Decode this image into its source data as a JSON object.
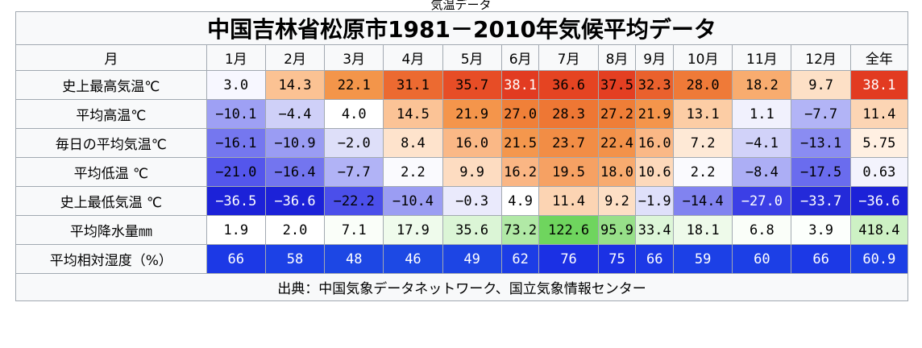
{
  "top_fragment": "気温データ",
  "title": "中国吉林省松原市1981－2010年気候平均データ",
  "header": {
    "label": "月",
    "months": [
      "1月",
      "2月",
      "3月",
      "4月",
      "5月",
      "6月",
      "7月",
      "8月",
      "9月",
      "10月",
      "11月",
      "12月",
      "全年"
    ]
  },
  "rows": [
    {
      "label": "史上最高気温℃",
      "cells": [
        {
          "v": "3.0",
          "bg": "#f7f7ff",
          "fg": "#000000"
        },
        {
          "v": "14.3",
          "bg": "#fbc293",
          "fg": "#000000"
        },
        {
          "v": "22.1",
          "bg": "#f3954a",
          "fg": "#000000"
        },
        {
          "v": "31.1",
          "bg": "#ec6a31",
          "fg": "#000000"
        },
        {
          "v": "35.7",
          "bg": "#e74d26",
          "fg": "#000000"
        },
        {
          "v": "38.1",
          "bg": "#e23b21",
          "fg": "#ffffff"
        },
        {
          "v": "36.6",
          "bg": "#e54422",
          "fg": "#000000"
        },
        {
          "v": "37.5",
          "bg": "#e43f22",
          "fg": "#000000"
        },
        {
          "v": "32.3",
          "bg": "#ea612d",
          "fg": "#000000"
        },
        {
          "v": "28.0",
          "bg": "#ef7a38",
          "fg": "#000000"
        },
        {
          "v": "18.2",
          "bg": "#f8ac6f",
          "fg": "#000000"
        },
        {
          "v": "9.7",
          "bg": "#fde0c6",
          "fg": "#000000"
        },
        {
          "v": "38.1",
          "bg": "#e23b21",
          "fg": "#ffffff"
        }
      ]
    },
    {
      "label": "平均高温℃",
      "cells": [
        {
          "v": "−10.1",
          "bg": "#9ea0f4",
          "fg": "#000000"
        },
        {
          "v": "−4.4",
          "bg": "#cfd0f8",
          "fg": "#000000"
        },
        {
          "v": "4.0",
          "bg": "#ffffff",
          "fg": "#000000"
        },
        {
          "v": "14.5",
          "bg": "#fbc396",
          "fg": "#000000"
        },
        {
          "v": "21.9",
          "bg": "#f4954b",
          "fg": "#000000"
        },
        {
          "v": "27.0",
          "bg": "#f08038",
          "fg": "#000000"
        },
        {
          "v": "28.3",
          "bg": "#ee7734",
          "fg": "#000000"
        },
        {
          "v": "27.2",
          "bg": "#ef7e37",
          "fg": "#000000"
        },
        {
          "v": "21.9",
          "bg": "#f4954b",
          "fg": "#000000"
        },
        {
          "v": "13.1",
          "bg": "#fccda5",
          "fg": "#000000"
        },
        {
          "v": "1.1",
          "bg": "#f1f1fd",
          "fg": "#000000"
        },
        {
          "v": "−7.7",
          "bg": "#b2b4f6",
          "fg": "#000000"
        },
        {
          "v": "11.4",
          "bg": "#fcd5b4",
          "fg": "#000000"
        }
      ]
    },
    {
      "label": "毎日の平均気温℃",
      "cells": [
        {
          "v": "−16.1",
          "bg": "#7577ef",
          "fg": "#000000"
        },
        {
          "v": "−10.9",
          "bg": "#9a9cf3",
          "fg": "#000000"
        },
        {
          "v": "−2.0",
          "bg": "#dedff9",
          "fg": "#000000"
        },
        {
          "v": "8.4",
          "bg": "#fee3cc",
          "fg": "#000000"
        },
        {
          "v": "16.0",
          "bg": "#fab886",
          "fg": "#000000"
        },
        {
          "v": "21.5",
          "bg": "#f4974d",
          "fg": "#000000"
        },
        {
          "v": "23.7",
          "bg": "#f28d45",
          "fg": "#000000"
        },
        {
          "v": "22.4",
          "bg": "#f3924a",
          "fg": "#000000"
        },
        {
          "v": "16.0",
          "bg": "#fab886",
          "fg": "#000000"
        },
        {
          "v": "7.2",
          "bg": "#fee9d6",
          "fg": "#000000"
        },
        {
          "v": "−4.1",
          "bg": "#d1d2f9",
          "fg": "#000000"
        },
        {
          "v": "−13.1",
          "bg": "#8a8cf2",
          "fg": "#000000"
        },
        {
          "v": "5.75",
          "bg": "#fff0e2",
          "fg": "#000000"
        }
      ]
    },
    {
      "label": "平均低温 ℃",
      "cells": [
        {
          "v": "−21.0",
          "bg": "#5456ec",
          "fg": "#000000"
        },
        {
          "v": "−16.4",
          "bg": "#7375ef",
          "fg": "#000000"
        },
        {
          "v": "−7.7",
          "bg": "#b1b3f6",
          "fg": "#000000"
        },
        {
          "v": "2.2",
          "bg": "#fafafe",
          "fg": "#000000"
        },
        {
          "v": "9.9",
          "bg": "#fddcc1",
          "fg": "#000000"
        },
        {
          "v": "16.2",
          "bg": "#fab684",
          "fg": "#000000"
        },
        {
          "v": "19.5",
          "bg": "#f6a163",
          "fg": "#000000"
        },
        {
          "v": "18.0",
          "bg": "#f8ab6f",
          "fg": "#000000"
        },
        {
          "v": "10.6",
          "bg": "#fdd9bb",
          "fg": "#000000"
        },
        {
          "v": "2.2",
          "bg": "#fafafe",
          "fg": "#000000"
        },
        {
          "v": "−8.4",
          "bg": "#acaef5",
          "fg": "#000000"
        },
        {
          "v": "−17.5",
          "bg": "#6a6cee",
          "fg": "#000000"
        },
        {
          "v": "0.63",
          "bg": "#f3f3fd",
          "fg": "#000000"
        }
      ]
    },
    {
      "label": "史上最低気温 ℃",
      "cells": [
        {
          "v": "−36.5",
          "bg": "#1c22d8",
          "fg": "#ffffff"
        },
        {
          "v": "−36.6",
          "bg": "#1c22d8",
          "fg": "#ffffff"
        },
        {
          "v": "−22.2",
          "bg": "#4b4fea",
          "fg": "#000000"
        },
        {
          "v": "−10.4",
          "bg": "#9b9df3",
          "fg": "#000000"
        },
        {
          "v": "−0.3",
          "bg": "#eaeafc",
          "fg": "#000000"
        },
        {
          "v": "4.9",
          "bg": "#ffffff",
          "fg": "#000000"
        },
        {
          "v": "11.4",
          "bg": "#fcd4b3",
          "fg": "#000000"
        },
        {
          "v": "9.2",
          "bg": "#fddfc5",
          "fg": "#000000"
        },
        {
          "v": "−1.9",
          "bg": "#dfe0fa",
          "fg": "#000000"
        },
        {
          "v": "−14.4",
          "bg": "#8183f0",
          "fg": "#000000"
        },
        {
          "v": "−27.0",
          "bg": "#3b3fe6",
          "fg": "#ffffff"
        },
        {
          "v": "−33.7",
          "bg": "#242ad9",
          "fg": "#ffffff"
        },
        {
          "v": "−36.6",
          "bg": "#1c22d8",
          "fg": "#ffffff"
        }
      ]
    },
    {
      "label": "平均降水量㎜",
      "cells": [
        {
          "v": "1.9",
          "bg": "#ffffff",
          "fg": "#000000"
        },
        {
          "v": "2.0",
          "bg": "#ffffff",
          "fg": "#000000"
        },
        {
          "v": "7.1",
          "bg": "#fafef9",
          "fg": "#000000"
        },
        {
          "v": "17.9",
          "bg": "#effbec",
          "fg": "#000000"
        },
        {
          "v": "35.6",
          "bg": "#dbf5d6",
          "fg": "#000000"
        },
        {
          "v": "73.2",
          "bg": "#b1e9a6",
          "fg": "#000000"
        },
        {
          "v": "122.6",
          "bg": "#6fd55e",
          "fg": "#000000"
        },
        {
          "v": "95.9",
          "bg": "#97e089",
          "fg": "#000000"
        },
        {
          "v": "33.4",
          "bg": "#ddf6d8",
          "fg": "#000000"
        },
        {
          "v": "18.1",
          "bg": "#eefaea",
          "fg": "#000000"
        },
        {
          "v": "6.8",
          "bg": "#fafef9",
          "fg": "#000000"
        },
        {
          "v": "3.9",
          "bg": "#fcfffc",
          "fg": "#000000"
        },
        {
          "v": "418.4",
          "bg": "#cdf1c4",
          "fg": "#000000"
        }
      ]
    },
    {
      "label": "平均相対湿度（%）",
      "cells": [
        {
          "v": "66",
          "bg": "#1c39e6",
          "fg": "#ffffff"
        },
        {
          "v": "58",
          "bg": "#1c41e6",
          "fg": "#ffffff"
        },
        {
          "v": "48",
          "bg": "#1d47e4",
          "fg": "#ffffff"
        },
        {
          "v": "46",
          "bg": "#1d49e4",
          "fg": "#ffffff"
        },
        {
          "v": "49",
          "bg": "#1d45e4",
          "fg": "#ffffff"
        },
        {
          "v": "62",
          "bg": "#1c3de6",
          "fg": "#ffffff"
        },
        {
          "v": "76",
          "bg": "#1b30e4",
          "fg": "#ffffff"
        },
        {
          "v": "75",
          "bg": "#1b31e4",
          "fg": "#ffffff"
        },
        {
          "v": "66",
          "bg": "#1c39e6",
          "fg": "#ffffff"
        },
        {
          "v": "59",
          "bg": "#1c40e6",
          "fg": "#ffffff"
        },
        {
          "v": "60",
          "bg": "#1c3fe6",
          "fg": "#ffffff"
        },
        {
          "v": "66",
          "bg": "#1c39e6",
          "fg": "#ffffff"
        },
        {
          "v": "60.9",
          "bg": "#1c3fe6",
          "fg": "#ffffff"
        }
      ]
    }
  ],
  "source": "出典：中国気象データネットワーク、国立気象情報センター"
}
